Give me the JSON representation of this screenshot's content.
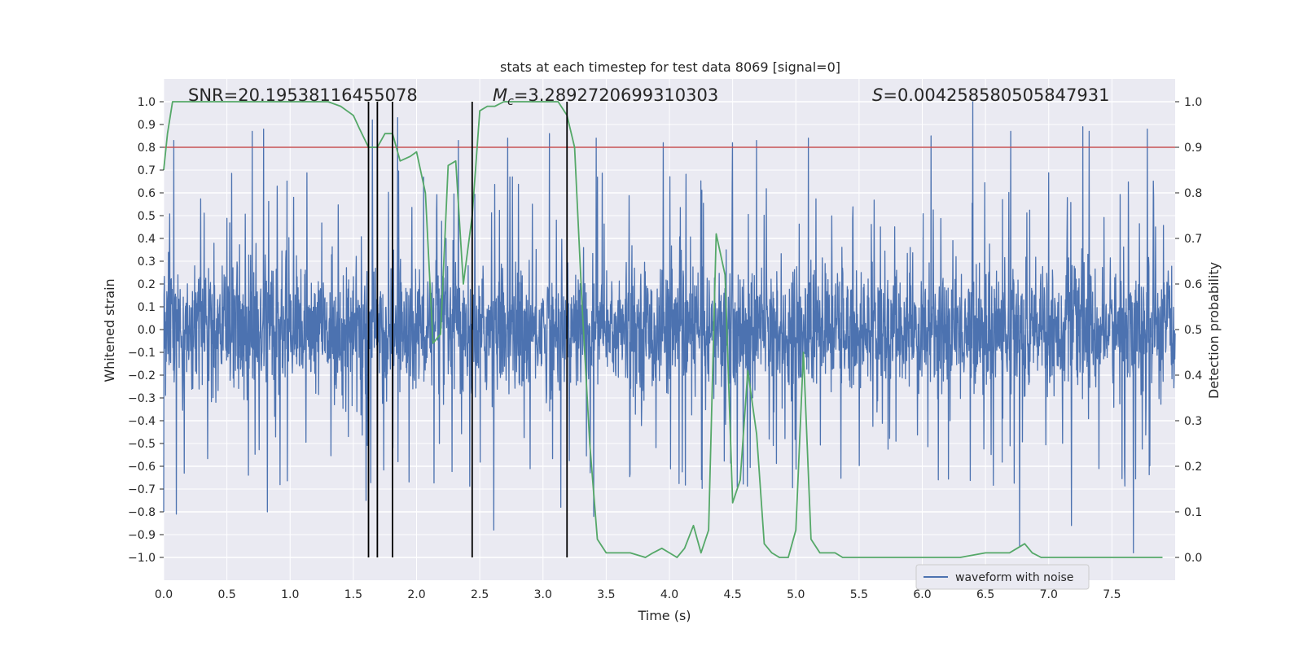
{
  "chart_data": {
    "type": "line",
    "title": "stats at each timestep for test data 8069 [signal=0]",
    "xlabel": "Time (s)",
    "ylabel": "Whitened strain",
    "y2label": "Detection probability",
    "xlim": [
      0.0,
      8.0
    ],
    "ylim": [
      -1.1,
      1.1
    ],
    "y2lim": [
      -0.05,
      1.05
    ],
    "xticks": [
      0.0,
      0.5,
      1.0,
      1.5,
      2.0,
      2.5,
      3.0,
      3.5,
      4.0,
      4.5,
      5.0,
      5.5,
      6.0,
      6.5,
      7.0,
      7.5
    ],
    "xtick_labels": [
      "0.0",
      "0.5",
      "1.0",
      "1.5",
      "2.0",
      "2.5",
      "3.0",
      "3.5",
      "4.0",
      "4.5",
      "5.0",
      "5.5",
      "6.0",
      "6.5",
      "7.0",
      "7.5"
    ],
    "yticks": [
      1.0,
      0.9,
      0.8,
      0.7,
      0.6,
      0.5,
      0.4,
      0.3,
      0.2,
      0.1,
      0.0,
      -0.1,
      -0.2,
      -0.3,
      -0.4,
      -0.5,
      -0.6,
      -0.7,
      -0.8,
      -0.9,
      -1.0
    ],
    "ytick_labels": [
      "1.0",
      "0.9",
      "0.8",
      "0.7",
      "0.6",
      "0.5",
      "0.4",
      "0.3",
      "0.2",
      "0.1",
      "0.0",
      "−0.1",
      "−0.2",
      "−0.3",
      "−0.4",
      "−0.5",
      "−0.6",
      "−0.7",
      "−0.8",
      "−0.9",
      "−1.0"
    ],
    "y2ticks": [
      1.0,
      0.9,
      0.8,
      0.7,
      0.6,
      0.5,
      0.4,
      0.3,
      0.2,
      0.1,
      0.0
    ],
    "y2tick_labels": [
      "1.0",
      "0.9",
      "0.8",
      "0.7",
      "0.6",
      "0.5",
      "0.4",
      "0.3",
      "0.2",
      "0.1",
      "0.0"
    ],
    "stats": {
      "snr": "SNR=20.19538116455078",
      "mc_symbol": "M",
      "mc_sub": "c",
      "mc_value": "=3.2892720699310303",
      "s_symbol": "S",
      "s_value": "=0.004258580505847931"
    },
    "legend": {
      "label": "waveform with noise",
      "position": "lower-right"
    },
    "threshold_line": {
      "y": 0.8,
      "color": "#c44e52"
    },
    "vertical_markers_x": [
      1.62,
      1.69,
      1.81,
      2.44,
      3.19
    ],
    "strain_series": {
      "name": "waveform with noise",
      "color": "#4c72b0",
      "noise_std": 0.14,
      "samples": 3200,
      "clip": [
        -1.0,
        1.0
      ],
      "spike_ups": [
        [
          0.08,
          0.83
        ],
        [
          0.7,
          0.87
        ],
        [
          0.79,
          0.88
        ],
        [
          1.65,
          0.92
        ],
        [
          1.85,
          0.93
        ],
        [
          2.33,
          0.83
        ],
        [
          2.72,
          0.84
        ],
        [
          3.05,
          0.86
        ],
        [
          3.42,
          0.84
        ],
        [
          3.95,
          0.82
        ],
        [
          4.5,
          0.82
        ],
        [
          4.69,
          0.83
        ],
        [
          5.1,
          0.84
        ],
        [
          6.07,
          0.85
        ],
        [
          6.4,
          1.0
        ],
        [
          6.7,
          0.87
        ],
        [
          7.27,
          0.89
        ],
        [
          7.32,
          0.87
        ],
        [
          7.78,
          0.88
        ]
      ],
      "spike_downs": [
        [
          0.0,
          -0.8
        ],
        [
          0.1,
          -0.81
        ],
        [
          0.82,
          -0.8
        ],
        [
          1.6,
          -0.75
        ],
        [
          2.61,
          -0.88
        ],
        [
          3.14,
          -0.78
        ],
        [
          3.4,
          -0.82
        ],
        [
          6.77,
          -0.95
        ],
        [
          7.18,
          -0.86
        ],
        [
          7.67,
          -0.98
        ]
      ]
    },
    "probability_series": {
      "name": "detection probability",
      "color": "#55a868",
      "x": [
        0.0,
        0.03,
        0.07,
        0.2,
        0.4,
        0.7,
        1.0,
        1.3,
        1.4,
        1.5,
        1.55,
        1.62,
        1.69,
        1.75,
        1.81,
        1.87,
        1.95,
        2.0,
        2.07,
        2.13,
        2.19,
        2.25,
        2.31,
        2.37,
        2.44,
        2.5,
        2.56,
        2.62,
        2.69,
        2.75,
        2.81,
        3.0,
        3.12,
        3.19,
        3.25,
        3.31,
        3.37,
        3.43,
        3.5,
        3.56,
        3.62,
        3.69,
        3.81,
        3.87,
        3.94,
        4.0,
        4.06,
        4.12,
        4.19,
        4.25,
        4.31,
        4.37,
        4.44,
        4.5,
        4.56,
        4.62,
        4.69,
        4.75,
        4.81,
        4.87,
        4.94,
        5.0,
        5.06,
        5.12,
        5.19,
        5.25,
        5.31,
        5.37,
        5.44,
        5.5,
        6.0,
        6.3,
        6.5,
        6.62,
        6.69,
        6.75,
        6.81,
        6.87,
        6.94,
        7.0,
        7.5,
        7.7,
        7.8,
        7.9
      ],
      "y": [
        0.85,
        0.93,
        1.0,
        1.0,
        1.0,
        1.0,
        1.0,
        1.0,
        0.99,
        0.97,
        0.94,
        0.9,
        0.9,
        0.93,
        0.93,
        0.87,
        0.88,
        0.89,
        0.8,
        0.47,
        0.49,
        0.86,
        0.87,
        0.6,
        0.75,
        0.98,
        0.99,
        0.99,
        1.0,
        1.0,
        1.0,
        1.0,
        1.0,
        0.97,
        0.9,
        0.55,
        0.25,
        0.04,
        0.01,
        0.01,
        0.01,
        0.01,
        0.0,
        0.01,
        0.02,
        0.01,
        0.0,
        0.02,
        0.07,
        0.01,
        0.06,
        0.71,
        0.62,
        0.12,
        0.17,
        0.41,
        0.27,
        0.03,
        0.01,
        0.0,
        0.0,
        0.06,
        0.45,
        0.04,
        0.01,
        0.01,
        0.01,
        0.0,
        0.0,
        0.0,
        0.0,
        0.0,
        0.01,
        0.01,
        0.01,
        0.02,
        0.03,
        0.01,
        0.0,
        0.0,
        0.0,
        0.0,
        0.0,
        0.0
      ]
    }
  }
}
